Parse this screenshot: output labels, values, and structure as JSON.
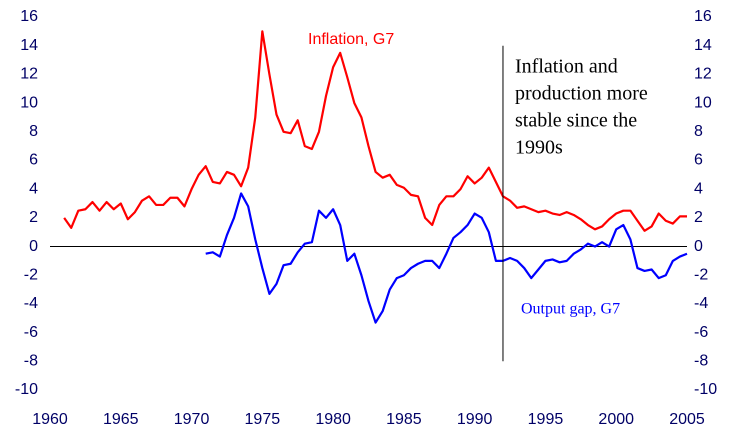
{
  "chart_data": {
    "type": "line",
    "xlim": [
      1960,
      2005
    ],
    "xticks": [
      1960,
      1965,
      1970,
      1975,
      1980,
      1985,
      1990,
      1995,
      2000,
      2005
    ],
    "ylim": [
      -10,
      16
    ],
    "yticks": [
      -10,
      -8,
      -6,
      -4,
      -2,
      0,
      2,
      4,
      6,
      8,
      10,
      12,
      14,
      16
    ],
    "y2lim": [
      -10,
      16
    ],
    "y2ticks": [
      -10,
      -8,
      -6,
      -4,
      -2,
      0,
      2,
      4,
      6,
      8,
      10,
      12,
      14,
      16
    ],
    "zero_line": true,
    "series": [
      {
        "name": "Inflation, G7",
        "color": "#ff0000",
        "x": [
          1961,
          1961.5,
          1962,
          1962.5,
          1963,
          1963.5,
          1964,
          1964.5,
          1965,
          1965.5,
          1966,
          1966.5,
          1967,
          1967.5,
          1968,
          1968.5,
          1969,
          1969.5,
          1970,
          1970.5,
          1971,
          1971.5,
          1972,
          1972.5,
          1973,
          1973.5,
          1974,
          1974.5,
          1975,
          1975.5,
          1976,
          1976.5,
          1977,
          1977.5,
          1978,
          1978.5,
          1979,
          1979.5,
          1980,
          1980.5,
          1981,
          1981.5,
          1982,
          1982.5,
          1983,
          1983.5,
          1984,
          1984.5,
          1985,
          1985.5,
          1986,
          1986.5,
          1987,
          1987.5,
          1988,
          1988.5,
          1989,
          1989.5,
          1990,
          1990.5,
          1991,
          1991.5,
          1992,
          1992.5,
          1993,
          1993.5,
          1994,
          1994.5,
          1995,
          1995.5,
          1996,
          1996.5,
          1997,
          1997.5,
          1998,
          1998.5,
          1999,
          1999.5,
          2000,
          2000.5,
          2001,
          2001.5,
          2002,
          2002.5,
          2003,
          2003.5,
          2004,
          2004.5,
          2005
        ],
        "values": [
          2.0,
          1.3,
          2.5,
          2.6,
          3.1,
          2.5,
          3.1,
          2.6,
          3.0,
          1.9,
          2.4,
          3.2,
          3.5,
          2.9,
          2.9,
          3.4,
          3.4,
          2.8,
          4.0,
          5.0,
          5.6,
          4.5,
          4.4,
          5.2,
          5.0,
          4.2,
          5.5,
          9.0,
          15.0,
          12.0,
          9.2,
          8.0,
          7.9,
          8.8,
          7.0,
          6.8,
          8.0,
          10.5,
          12.5,
          13.5,
          11.8,
          10.0,
          9.0,
          7.0,
          5.2,
          4.8,
          5.0,
          4.3,
          4.1,
          3.6,
          3.5,
          2.0,
          1.5,
          2.9,
          3.5,
          3.5,
          4.0,
          4.9,
          4.4,
          4.8,
          5.5,
          4.5,
          3.5,
          3.2,
          2.7,
          2.8,
          2.6,
          2.4,
          2.5,
          2.3,
          2.2,
          2.4,
          2.2,
          1.9,
          1.5,
          1.2,
          1.4,
          1.9,
          2.3,
          2.5,
          2.5,
          1.8,
          1.1,
          1.4,
          2.3,
          1.8,
          1.6,
          2.1,
          2.1
        ]
      },
      {
        "name": "Output gap, G7",
        "color": "#0000ff",
        "x": [
          1971,
          1971.5,
          1972,
          1972.5,
          1973,
          1973.5,
          1974,
          1974.5,
          1975,
          1975.5,
          1976,
          1976.5,
          1977,
          1977.5,
          1978,
          1978.5,
          1979,
          1979.5,
          1980,
          1980.5,
          1981,
          1981.5,
          1982,
          1982.5,
          1983,
          1983.5,
          1984,
          1984.5,
          1985,
          1985.5,
          1986,
          1986.5,
          1987,
          1987.5,
          1988,
          1988.5,
          1989,
          1989.5,
          1990,
          1990.5,
          1991,
          1991.5,
          1992,
          1992.5,
          1993,
          1993.5,
          1994,
          1994.5,
          1995,
          1995.5,
          1996,
          1996.5,
          1997,
          1997.5,
          1998,
          1998.5,
          1999,
          1999.5,
          2000,
          2000.5,
          2001,
          2001.5,
          2002,
          2002.5,
          2003,
          2003.5,
          2004,
          2004.5,
          2005
        ],
        "values": [
          -0.5,
          -0.4,
          -0.7,
          0.8,
          2.0,
          3.7,
          2.8,
          0.5,
          -1.5,
          -3.3,
          -2.6,
          -1.3,
          -1.2,
          -0.4,
          0.2,
          0.3,
          2.5,
          2.0,
          2.6,
          1.5,
          -1.0,
          -0.5,
          -2.0,
          -3.8,
          -5.3,
          -4.5,
          -3.0,
          -2.2,
          -2.0,
          -1.5,
          -1.2,
          -1.0,
          -1.0,
          -1.5,
          -0.5,
          0.6,
          1.0,
          1.5,
          2.3,
          2.0,
          1.0,
          -1.0,
          -1.0,
          -0.8,
          -1.0,
          -1.5,
          -2.2,
          -1.6,
          -1.0,
          -0.9,
          -1.1,
          -1.0,
          -0.5,
          -0.2,
          0.2,
          0.0,
          0.3,
          0.0,
          1.2,
          1.5,
          0.5,
          -1.5,
          -1.7,
          -1.6,
          -2.2,
          -2.0,
          -1.0,
          -0.7,
          -0.5
        ]
      }
    ],
    "annotation": {
      "lines": [
        "Inflation and",
        "production more",
        "stable since the",
        "1990s"
      ],
      "x": 1992,
      "from": -8,
      "to": 14
    }
  }
}
